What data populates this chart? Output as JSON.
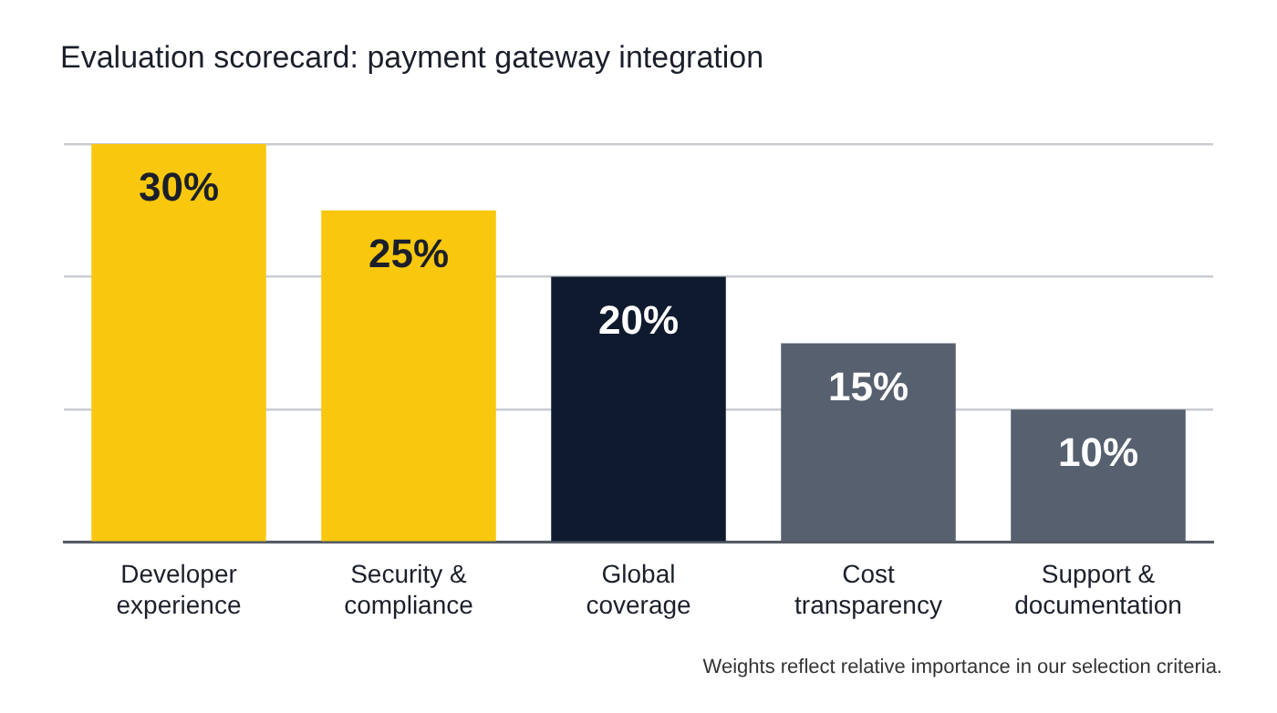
{
  "chart_data": {
    "type": "bar",
    "title": "Evaluation scorecard: payment gateway integration",
    "categories": [
      "Developer experience",
      "Security & compliance",
      "Global coverage",
      "Cost transparency",
      "Support & documentation"
    ],
    "values": [
      30,
      25,
      20,
      15,
      10
    ],
    "colors": [
      "#f9c80e",
      "#f9c80e",
      "#0f1a2e",
      "#56606e",
      "#56606e"
    ],
    "value_labels": [
      "30%",
      "25%",
      "20%",
      "15%",
      "10%"
    ],
    "ylim": [
      0,
      30
    ],
    "yticks": [
      {
        "value": 0,
        "label": null
      },
      {
        "value": 10,
        "label": null
      },
      {
        "value": 20,
        "label": null
      },
      {
        "value": 30,
        "label": null
      }
    ],
    "grid": "y",
    "legend": false,
    "annotations": [
      "Weights reflect relative importance in our selection criteria."
    ]
  }
}
